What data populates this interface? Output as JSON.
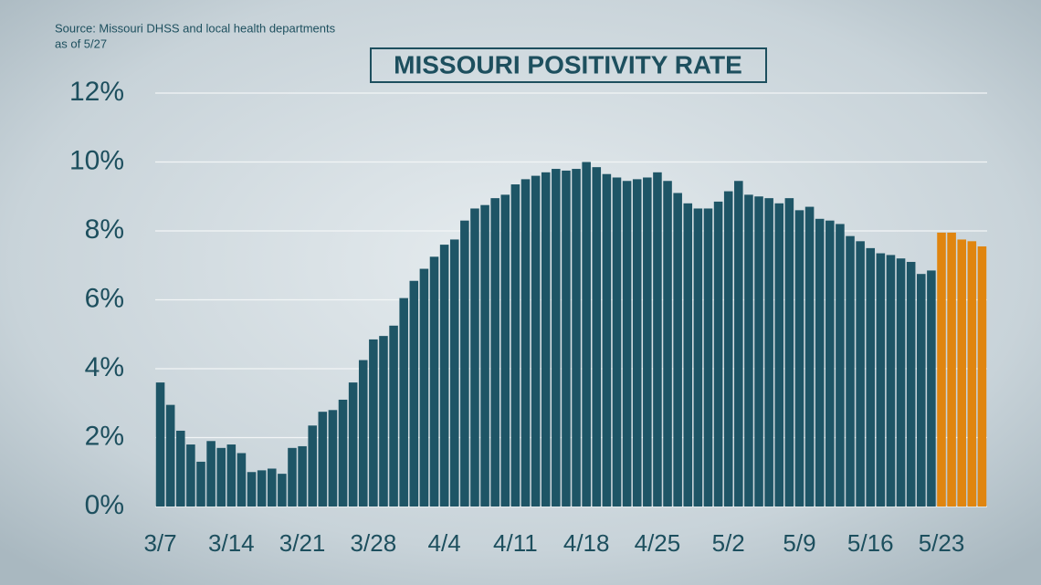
{
  "chart_data": {
    "type": "bar",
    "title": "MISSOURI POSITIVITY RATE",
    "source": "Source: Missouri DHSS and local health departments",
    "note": "as of 5/27",
    "categories": [
      "3/7",
      null,
      null,
      null,
      null,
      null,
      null,
      "3/14",
      null,
      null,
      null,
      null,
      null,
      null,
      "3/21",
      null,
      null,
      null,
      null,
      null,
      null,
      "3/28",
      null,
      null,
      null,
      null,
      null,
      null,
      "4/4",
      null,
      null,
      null,
      null,
      null,
      null,
      "4/11",
      null,
      null,
      null,
      null,
      null,
      null,
      "4/18",
      null,
      null,
      null,
      null,
      null,
      null,
      "4/25",
      null,
      null,
      null,
      null,
      null,
      null,
      "5/2",
      null,
      null,
      null,
      null,
      null,
      null,
      "5/9",
      null,
      null,
      null,
      null,
      null,
      null,
      "5/16",
      null,
      null,
      null,
      null,
      null,
      null,
      "5/23",
      null,
      null,
      null,
      null
    ],
    "values": [
      3.6,
      2.95,
      2.2,
      1.8,
      1.3,
      1.9,
      1.7,
      1.8,
      1.55,
      1.0,
      1.05,
      1.1,
      0.95,
      1.7,
      1.75,
      2.35,
      2.75,
      2.8,
      3.1,
      3.6,
      4.25,
      4.85,
      4.95,
      5.25,
      6.05,
      6.55,
      6.9,
      7.25,
      7.6,
      7.75,
      8.3,
      8.65,
      8.75,
      8.95,
      9.05,
      9.35,
      9.5,
      9.6,
      9.7,
      9.8,
      9.75,
      9.8,
      10.0,
      9.85,
      9.65,
      9.55,
      9.45,
      9.5,
      9.55,
      9.7,
      9.45,
      9.1,
      8.8,
      8.65,
      8.65,
      8.85,
      9.15,
      9.45,
      9.05,
      9.0,
      8.95,
      8.8,
      8.95,
      8.6,
      8.7,
      8.35,
      8.3,
      8.2,
      7.85,
      7.7,
      7.5,
      7.35,
      7.3,
      7.2,
      7.1,
      6.75,
      6.85,
      7.95,
      7.95,
      7.75,
      7.7,
      7.55
    ],
    "colors": [
      "#1e5566",
      "#1e5566",
      "#1e5566",
      "#1e5566",
      "#1e5566",
      "#1e5566",
      "#1e5566",
      "#1e5566",
      "#1e5566",
      "#1e5566",
      "#1e5566",
      "#1e5566",
      "#1e5566",
      "#1e5566",
      "#1e5566",
      "#1e5566",
      "#1e5566",
      "#1e5566",
      "#1e5566",
      "#1e5566",
      "#1e5566",
      "#1e5566",
      "#1e5566",
      "#1e5566",
      "#1e5566",
      "#1e5566",
      "#1e5566",
      "#1e5566",
      "#1e5566",
      "#1e5566",
      "#1e5566",
      "#1e5566",
      "#1e5566",
      "#1e5566",
      "#1e5566",
      "#1e5566",
      "#1e5566",
      "#1e5566",
      "#1e5566",
      "#1e5566",
      "#1e5566",
      "#1e5566",
      "#1e5566",
      "#1e5566",
      "#1e5566",
      "#1e5566",
      "#1e5566",
      "#1e5566",
      "#1e5566",
      "#1e5566",
      "#1e5566",
      "#1e5566",
      "#1e5566",
      "#1e5566",
      "#1e5566",
      "#1e5566",
      "#1e5566",
      "#1e5566",
      "#1e5566",
      "#1e5566",
      "#1e5566",
      "#1e5566",
      "#1e5566",
      "#1e5566",
      "#1e5566",
      "#1e5566",
      "#1e5566",
      "#1e5566",
      "#1e5566",
      "#1e5566",
      "#1e5566",
      "#1e5566",
      "#1e5566",
      "#1e5566",
      "#1e5566",
      "#1e5566",
      "#1e5566",
      "#e0850f",
      "#e0850f",
      "#e0850f",
      "#e0850f",
      "#e0850f"
    ],
    "ylim": [
      0,
      12
    ],
    "yticks": [
      {
        "value": 0,
        "label": "0%"
      },
      {
        "value": 2,
        "label": "2%"
      },
      {
        "value": 4,
        "label": "4%"
      },
      {
        "value": 6,
        "label": "6%"
      },
      {
        "value": 8,
        "label": "8%"
      },
      {
        "value": 10,
        "label": "10%"
      },
      {
        "value": 12,
        "label": "12%"
      }
    ],
    "grid": true
  }
}
